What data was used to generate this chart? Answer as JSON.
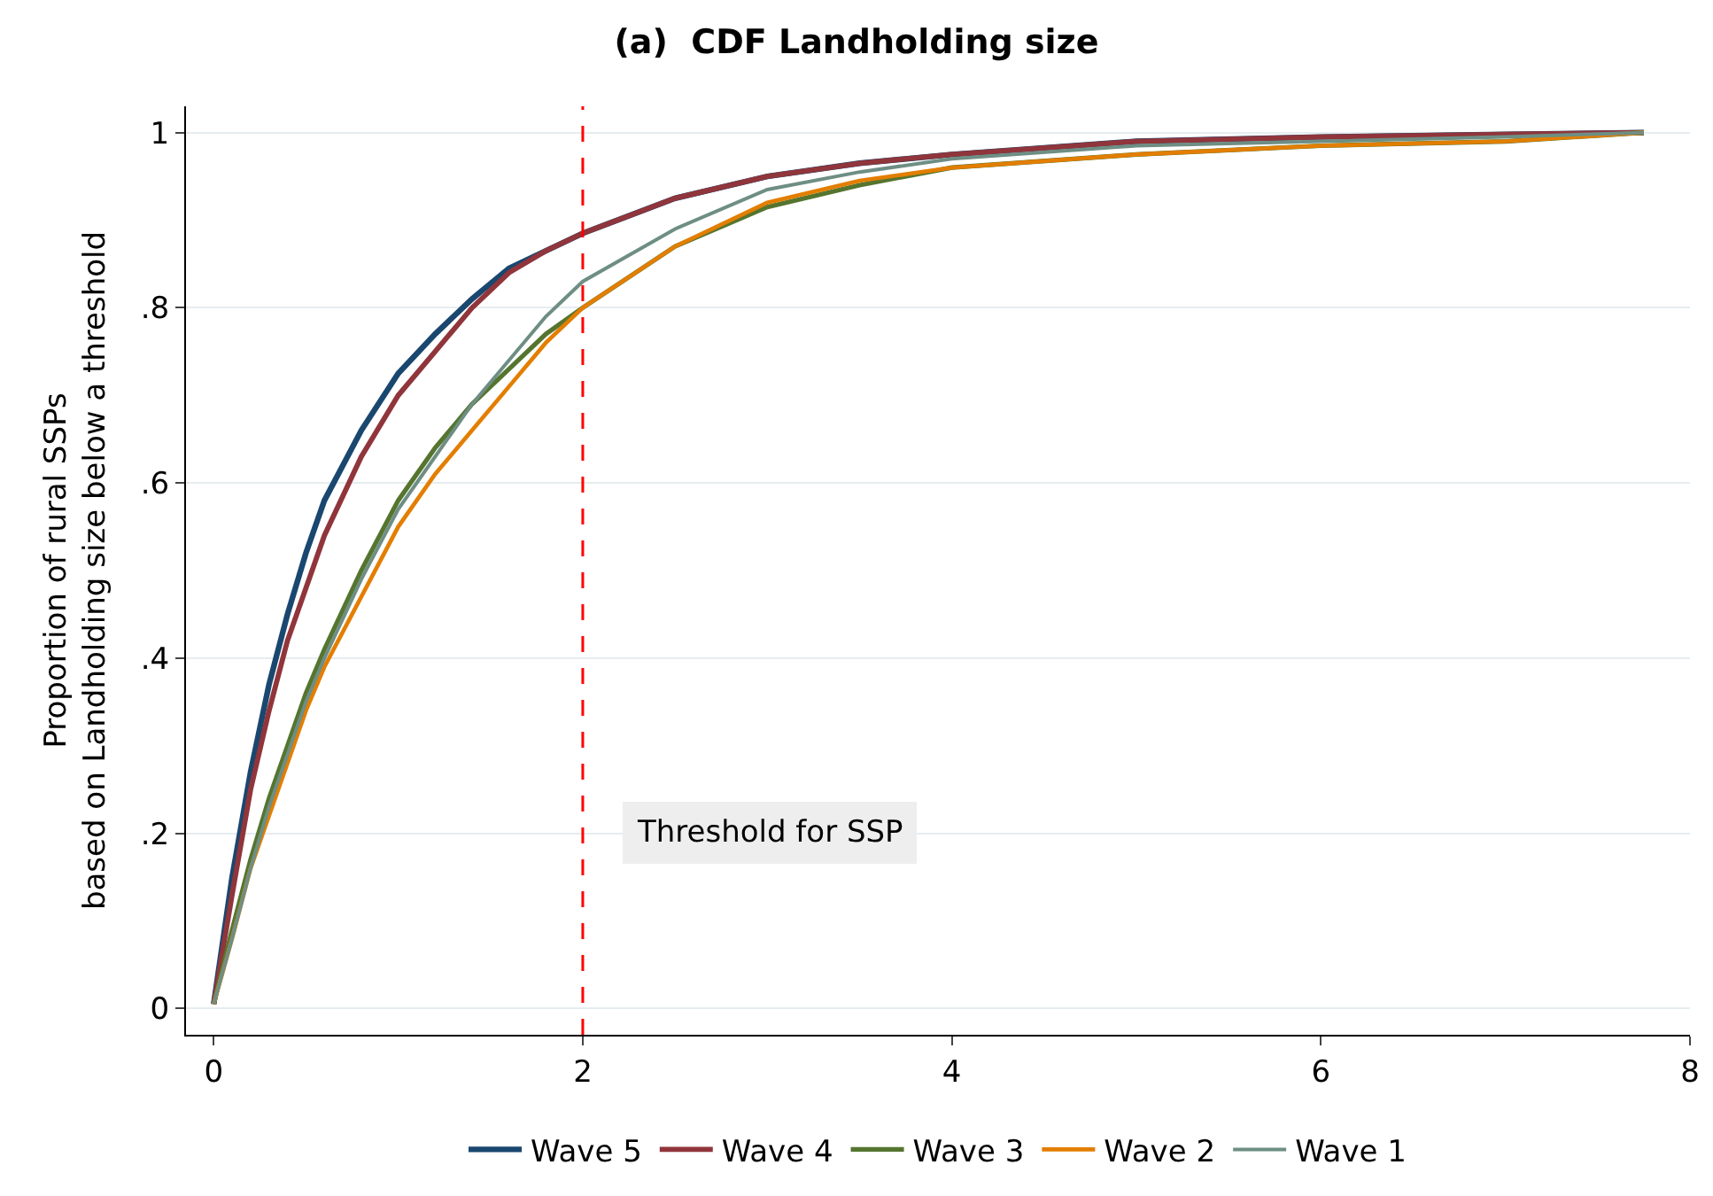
{
  "chart_data": {
    "type": "line",
    "title": "(a)  CDF Landholding size",
    "ylabel": "Proportion of rural SSPs\nbased on Landholding size below a threshold",
    "x": [
      0,
      0.1,
      0.2,
      0.3,
      0.4,
      0.5,
      0.6,
      0.8,
      1.0,
      1.2,
      1.4,
      1.6,
      1.8,
      2.0,
      2.5,
      3,
      3.5,
      4,
      5,
      6,
      7,
      7.75
    ],
    "series": [
      {
        "name": "Wave 5",
        "color": "#1a476f",
        "values": [
          0.005,
          0.15,
          0.27,
          0.37,
          0.45,
          0.52,
          0.58,
          0.66,
          0.725,
          0.77,
          0.81,
          0.845,
          0.865,
          0.885,
          0.925,
          0.95,
          0.965,
          0.975,
          0.99,
          0.995,
          0.998,
          1
        ]
      },
      {
        "name": "Wave 4",
        "color": "#90353b",
        "values": [
          0.005,
          0.13,
          0.25,
          0.34,
          0.42,
          0.48,
          0.54,
          0.63,
          0.7,
          0.75,
          0.8,
          0.84,
          0.865,
          0.885,
          0.925,
          0.95,
          0.965,
          0.975,
          0.99,
          0.995,
          0.998,
          1
        ]
      },
      {
        "name": "Wave 3",
        "color": "#55752f",
        "values": [
          0.005,
          0.09,
          0.17,
          0.24,
          0.3,
          0.36,
          0.41,
          0.5,
          0.58,
          0.64,
          0.69,
          0.73,
          0.77,
          0.8,
          0.87,
          0.915,
          0.94,
          0.96,
          0.975,
          0.985,
          0.99,
          1
        ]
      },
      {
        "name": "Wave 2",
        "color": "#e37e00",
        "values": [
          0.005,
          0.08,
          0.16,
          0.22,
          0.28,
          0.34,
          0.39,
          0.47,
          0.55,
          0.61,
          0.66,
          0.71,
          0.76,
          0.8,
          0.87,
          0.92,
          0.945,
          0.96,
          0.975,
          0.985,
          0.99,
          1
        ]
      },
      {
        "name": "Wave 1",
        "color": "#6e8e84",
        "values": [
          0.005,
          0.08,
          0.16,
          0.23,
          0.29,
          0.35,
          0.4,
          0.49,
          0.57,
          0.63,
          0.69,
          0.74,
          0.79,
          0.83,
          0.89,
          0.935,
          0.955,
          0.97,
          0.985,
          0.99,
          0.995,
          1
        ]
      }
    ],
    "xlim": [
      -0.15,
      8
    ],
    "xticks": [
      0,
      2,
      4,
      6,
      8
    ],
    "ylim": [
      -0.03,
      1.03
    ],
    "yticks": [
      0,
      {
        "value": 0.2,
        "label": ".2"
      },
      {
        "value": 0.4,
        "label": ".4"
      },
      {
        "value": 0.6,
        "label": ".6"
      },
      {
        "value": 0.8,
        "label": ".8"
      },
      1
    ],
    "ref_lines": [
      {
        "axis": "x",
        "value": 2,
        "label": "Threshold for SSP",
        "color": "#ff0000",
        "line_style": "dashed"
      }
    ],
    "grid": "y",
    "legend": "bottom",
    "marker": "none",
    "line_style": "solid"
  }
}
